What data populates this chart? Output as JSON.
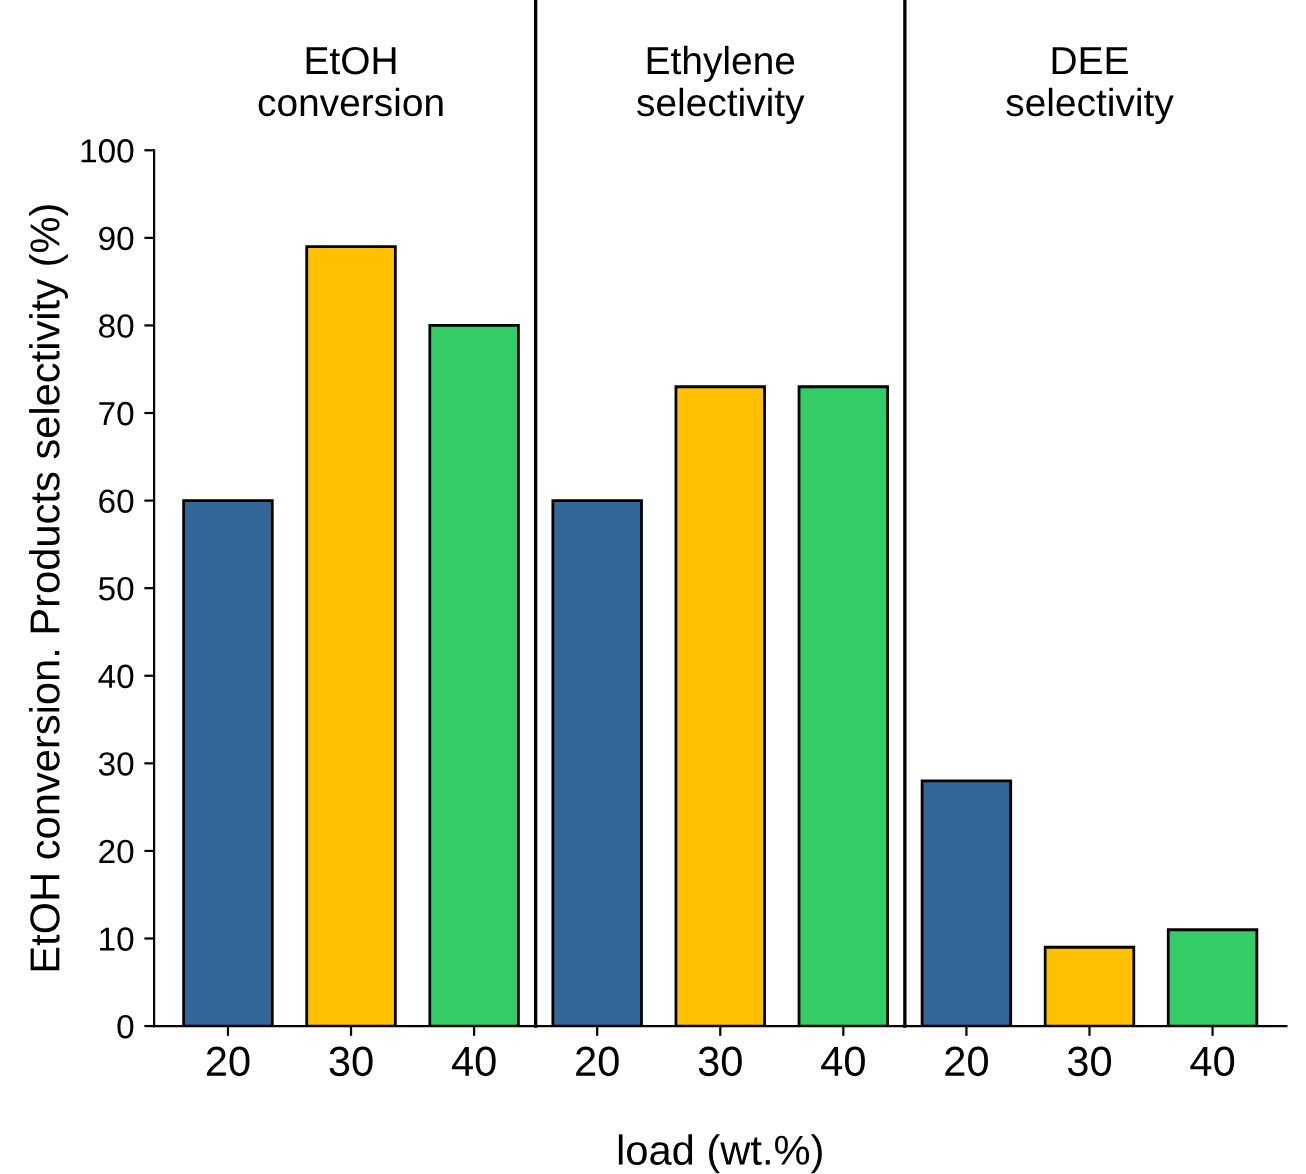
{
  "chart_data": {
    "type": "bar",
    "categories": [
      "20",
      "30",
      "40",
      "20",
      "30",
      "40",
      "20",
      "30",
      "40"
    ],
    "values": [
      60,
      89,
      80,
      60,
      73,
      73,
      28,
      9,
      11
    ],
    "colors": [
      "#336699",
      "#ffc000",
      "#33cc66",
      "#336699",
      "#ffc000",
      "#33cc66",
      "#336699",
      "#ffc000",
      "#33cc66"
    ],
    "xlabel": "load (wt.%)",
    "ylabel": "EtOH conversion. Products selectivity (%)",
    "annotations": [
      "EtOH\nconversion",
      "Ethylene\nselectivity",
      "DEE\nselectivity"
    ],
    "ylim": [
      0,
      100
    ],
    "yticks": [
      0,
      10,
      20,
      30,
      40,
      50,
      60,
      70,
      80,
      90,
      100
    ],
    "grid": false
  }
}
